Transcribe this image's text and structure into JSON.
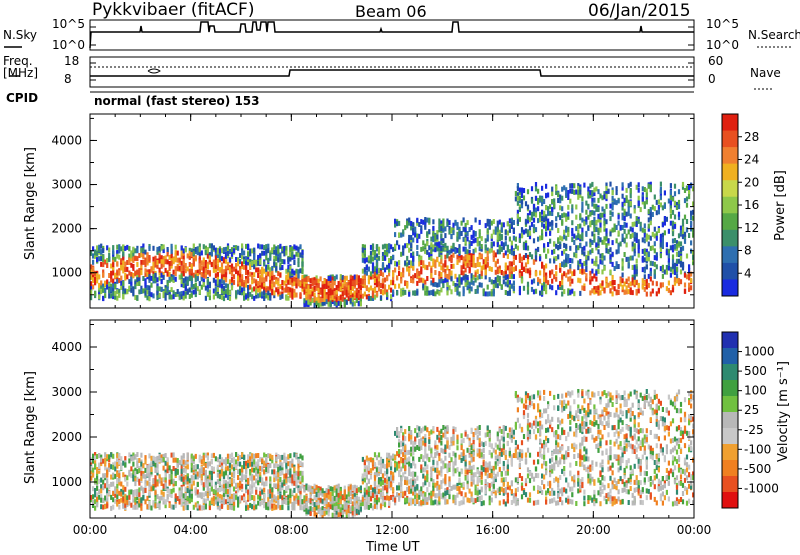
{
  "header": {
    "station": "Pykkvibaer (fitACF)",
    "beam": "Beam 06",
    "date": "06/Jan/2015"
  },
  "top_panels": {
    "nsky_label": "N.Sky",
    "nsky_ticks": [
      "10^5",
      "10^0"
    ],
    "nsearch_label": "N.Search",
    "nsearch_ticks": [
      "10^5",
      "10^0"
    ],
    "freq_label": "Freq.",
    "freq_unit": "[MHz]",
    "freq_ticks": [
      "18",
      "8"
    ],
    "nave_label": "Nave",
    "nave_ticks": [
      "60",
      "0"
    ],
    "cpid_label": "CPID",
    "cpid_value": "normal (fast stereo) 153"
  },
  "colors": {
    "power_scale": [
      "#1a2be0",
      "#2050a8",
      "#2e6fb0",
      "#3b8f6a",
      "#55a845",
      "#8ec84a",
      "#c8d84a",
      "#f0b020",
      "#f08030",
      "#e85020",
      "#e02010"
    ],
    "velocity_scale": [
      "#2030b0",
      "#2060a8",
      "#2e8a70",
      "#40a040",
      "#70c040",
      "#b8b8b8",
      "#c8c8c8",
      "#f0a030",
      "#f08020",
      "#e85020",
      "#e01010"
    ]
  },
  "chart_data": [
    {
      "type": "heatmap",
      "ylabel": "Slant Range [km]",
      "xlabel": "Time UT",
      "x_ticks": [
        "00:00",
        "04:00",
        "08:00",
        "12:00",
        "16:00",
        "20:00",
        "00:00"
      ],
      "y_ticks": [
        "1000",
        "2000",
        "3000",
        "4000"
      ],
      "ylim": [
        200,
        4600
      ],
      "colorbar_label": "Power [dB]",
      "colorbar_ticks": [
        "4",
        "8",
        "12",
        "16",
        "20",
        "24",
        "28"
      ]
    },
    {
      "type": "heatmap",
      "ylabel": "Slant Range [km]",
      "xlabel": "Time UT",
      "x_ticks": [
        "00:00",
        "04:00",
        "08:00",
        "12:00",
        "16:00",
        "20:00",
        "00:00"
      ],
      "y_ticks": [
        "1000",
        "2000",
        "3000",
        "4000"
      ],
      "ylim": [
        200,
        4600
      ],
      "colorbar_label": "Velocity [m s⁻¹]",
      "colorbar_ticks": [
        "1000",
        "500",
        "100",
        "25",
        "-25",
        "-100",
        "-500",
        "-1000"
      ]
    }
  ]
}
